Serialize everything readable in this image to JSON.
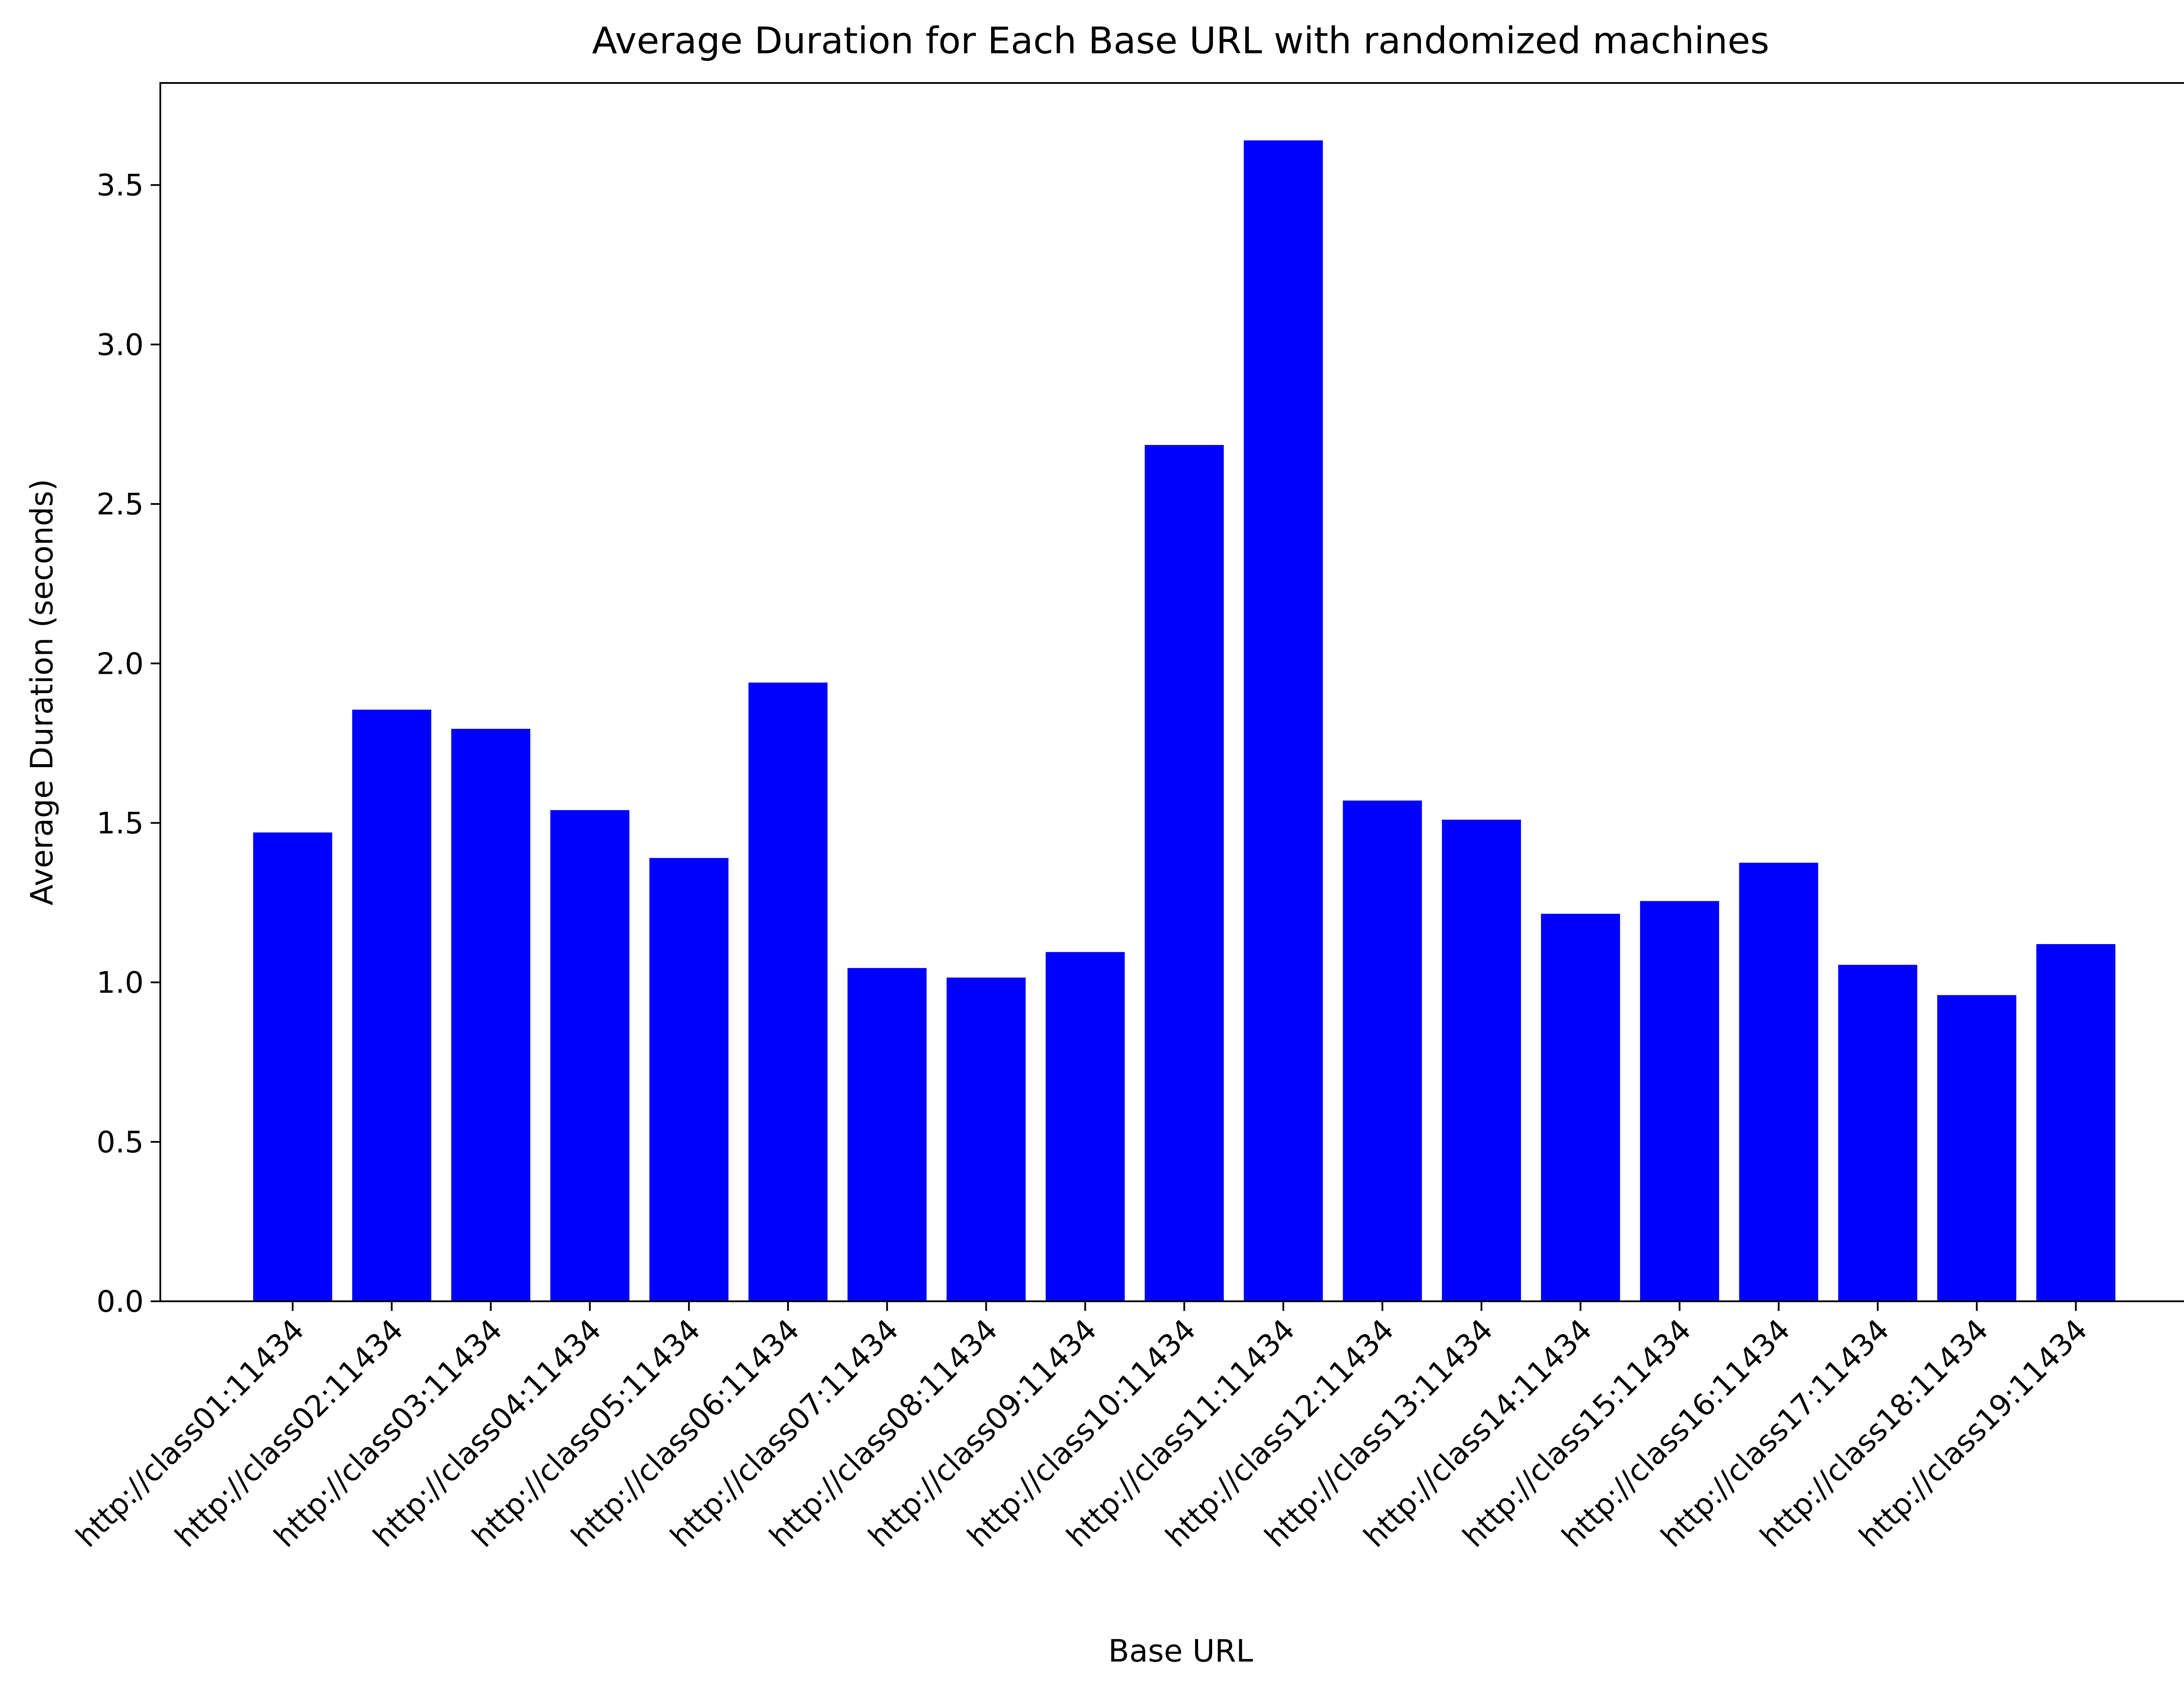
{
  "chart_data": {
    "type": "bar",
    "title": "Average Duration for Each Base URL with randomized machines",
    "xlabel": "Base URL",
    "ylabel": "Average Duration (seconds)",
    "categories": [
      "http://class01:11434",
      "http://class02:11434",
      "http://class03:11434",
      "http://class04:11434",
      "http://class05:11434",
      "http://class06:11434",
      "http://class07:11434",
      "http://class08:11434",
      "http://class09:11434",
      "http://class10:11434",
      "http://class11:11434",
      "http://class12:11434",
      "http://class13:11434",
      "http://class14:11434",
      "http://class15:11434",
      "http://class16:11434",
      "http://class17:11434",
      "http://class18:11434",
      "http://class19:11434"
    ],
    "values": [
      1.47,
      1.855,
      1.795,
      1.54,
      1.39,
      1.94,
      1.045,
      1.015,
      1.095,
      2.685,
      3.64,
      1.57,
      1.51,
      1.215,
      1.255,
      1.375,
      1.055,
      0.96,
      1.12
    ],
    "yticks": [
      "0.0",
      "0.5",
      "1.0",
      "1.5",
      "2.0",
      "2.5",
      "3.0",
      "3.5"
    ],
    "ylim": [
      0,
      3.82
    ],
    "bar_color": "#0000ff",
    "grid": false,
    "legend": "none"
  }
}
